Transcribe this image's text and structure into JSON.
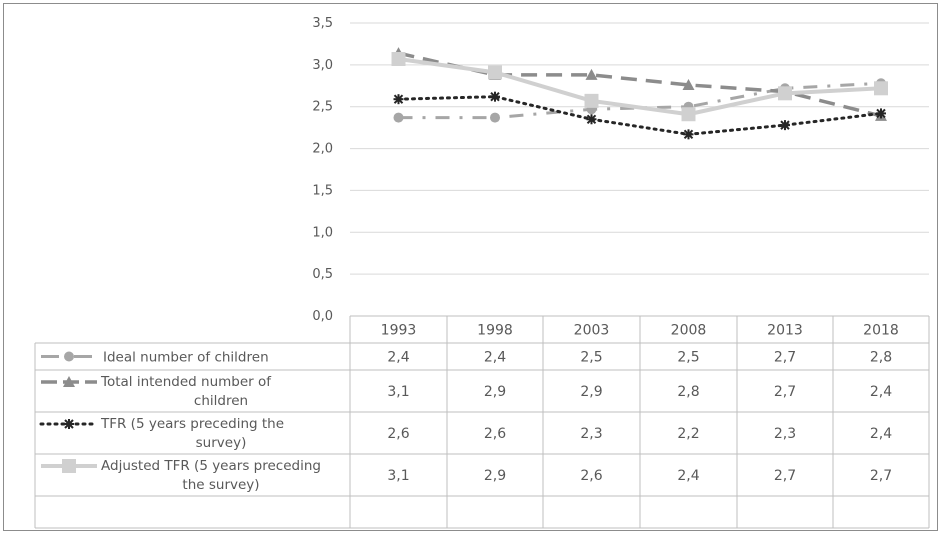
{
  "chart_data": {
    "type": "line",
    "title": "",
    "xlabel": "",
    "ylabel": "",
    "ylim": [
      0,
      3.5
    ],
    "yticks": [
      "0,0",
      "0,5",
      "1,0",
      "1,5",
      "2,0",
      "2,5",
      "3,0",
      "3,5"
    ],
    "categories": [
      "1993",
      "1998",
      "2003",
      "2008",
      "2013",
      "2018"
    ],
    "grid": true,
    "legend": "data-table-left",
    "data_table": true,
    "series": [
      {
        "name": "Ideal number of children",
        "label_lines": [
          "Ideal number of children"
        ],
        "plot_values": [
          2.37,
          2.37,
          2.47,
          2.5,
          2.72,
          2.78
        ],
        "values": [
          "2,4",
          "2,4",
          "2,5",
          "2,5",
          "2,7",
          "2,8"
        ],
        "color": "#a6a6a6",
        "dash": "dash-dot",
        "marker": "circle"
      },
      {
        "name": "Total intended number of children",
        "label_lines": [
          "Total intended number of",
          "children"
        ],
        "plot_values": [
          3.14,
          2.88,
          2.88,
          2.76,
          2.68,
          2.39
        ],
        "values": [
          "3,1",
          "2,9",
          "2,9",
          "2,8",
          "2,7",
          "2,4"
        ],
        "color": "#8c8c8c",
        "dash": "long-dash",
        "marker": "triangle"
      },
      {
        "name": "TFR (5 years preceding the survey)",
        "label_lines": [
          "TFR (5 years preceding the",
          "survey)"
        ],
        "plot_values": [
          2.59,
          2.62,
          2.35,
          2.17,
          2.28,
          2.42
        ],
        "values": [
          "2,6",
          "2,6",
          "2,3",
          "2,2",
          "2,3",
          "2,4"
        ],
        "color": "#262626",
        "dash": "dot",
        "marker": "asterisk"
      },
      {
        "name": "Adjusted TFR (5 years preceding the survey)",
        "label_lines": [
          "Adjusted TFR (5 years preceding",
          "the survey)"
        ],
        "plot_values": [
          3.07,
          2.91,
          2.57,
          2.41,
          2.66,
          2.72
        ],
        "values": [
          "3,1",
          "2,9",
          "2,6",
          "2,4",
          "2,7",
          "2,7"
        ],
        "color": "#d0d0d0",
        "dash": "solid",
        "marker": "square"
      }
    ]
  }
}
